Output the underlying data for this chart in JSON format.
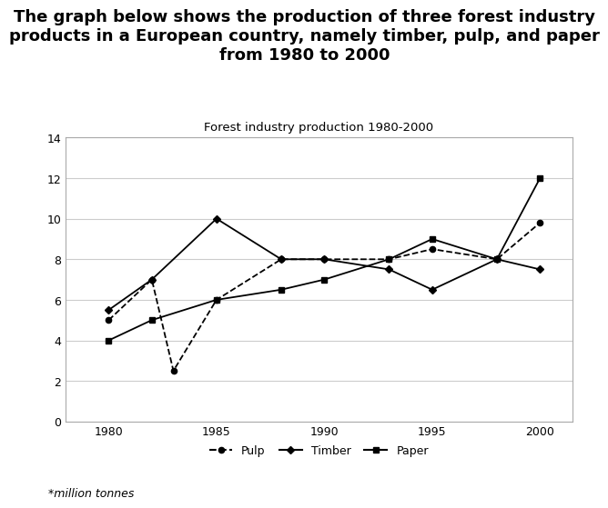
{
  "title": "The graph below shows the production of three forest industry\nproducts in a European country, namely timber, pulp, and paper\nfrom 1980 to 2000",
  "chart_title": "Forest industry production 1980-2000",
  "footnote": "*million tonnes",
  "years": [
    1980,
    1982,
    1983,
    1985,
    1988,
    1990,
    1993,
    1995,
    1998,
    2000
  ],
  "pulp": [
    5.0,
    7.0,
    2.5,
    6.0,
    8.0,
    8.0,
    8.0,
    8.5,
    8.0,
    9.8
  ],
  "timber": [
    5.5,
    7.0,
    null,
    10.0,
    8.0,
    8.0,
    7.5,
    6.5,
    8.0,
    7.5
  ],
  "paper": [
    4.0,
    5.0,
    null,
    6.0,
    6.5,
    7.0,
    8.0,
    9.0,
    8.0,
    12.0
  ],
  "ylim": [
    0,
    14
  ],
  "yticks": [
    0,
    2,
    4,
    6,
    8,
    10,
    12,
    14
  ],
  "xticks": [
    1980,
    1985,
    1990,
    1995,
    2000
  ],
  "background_color": "#ffffff",
  "plot_bg_color": "#ffffff",
  "grid_color": "#cccccc",
  "border_color": "#aaaaaa"
}
